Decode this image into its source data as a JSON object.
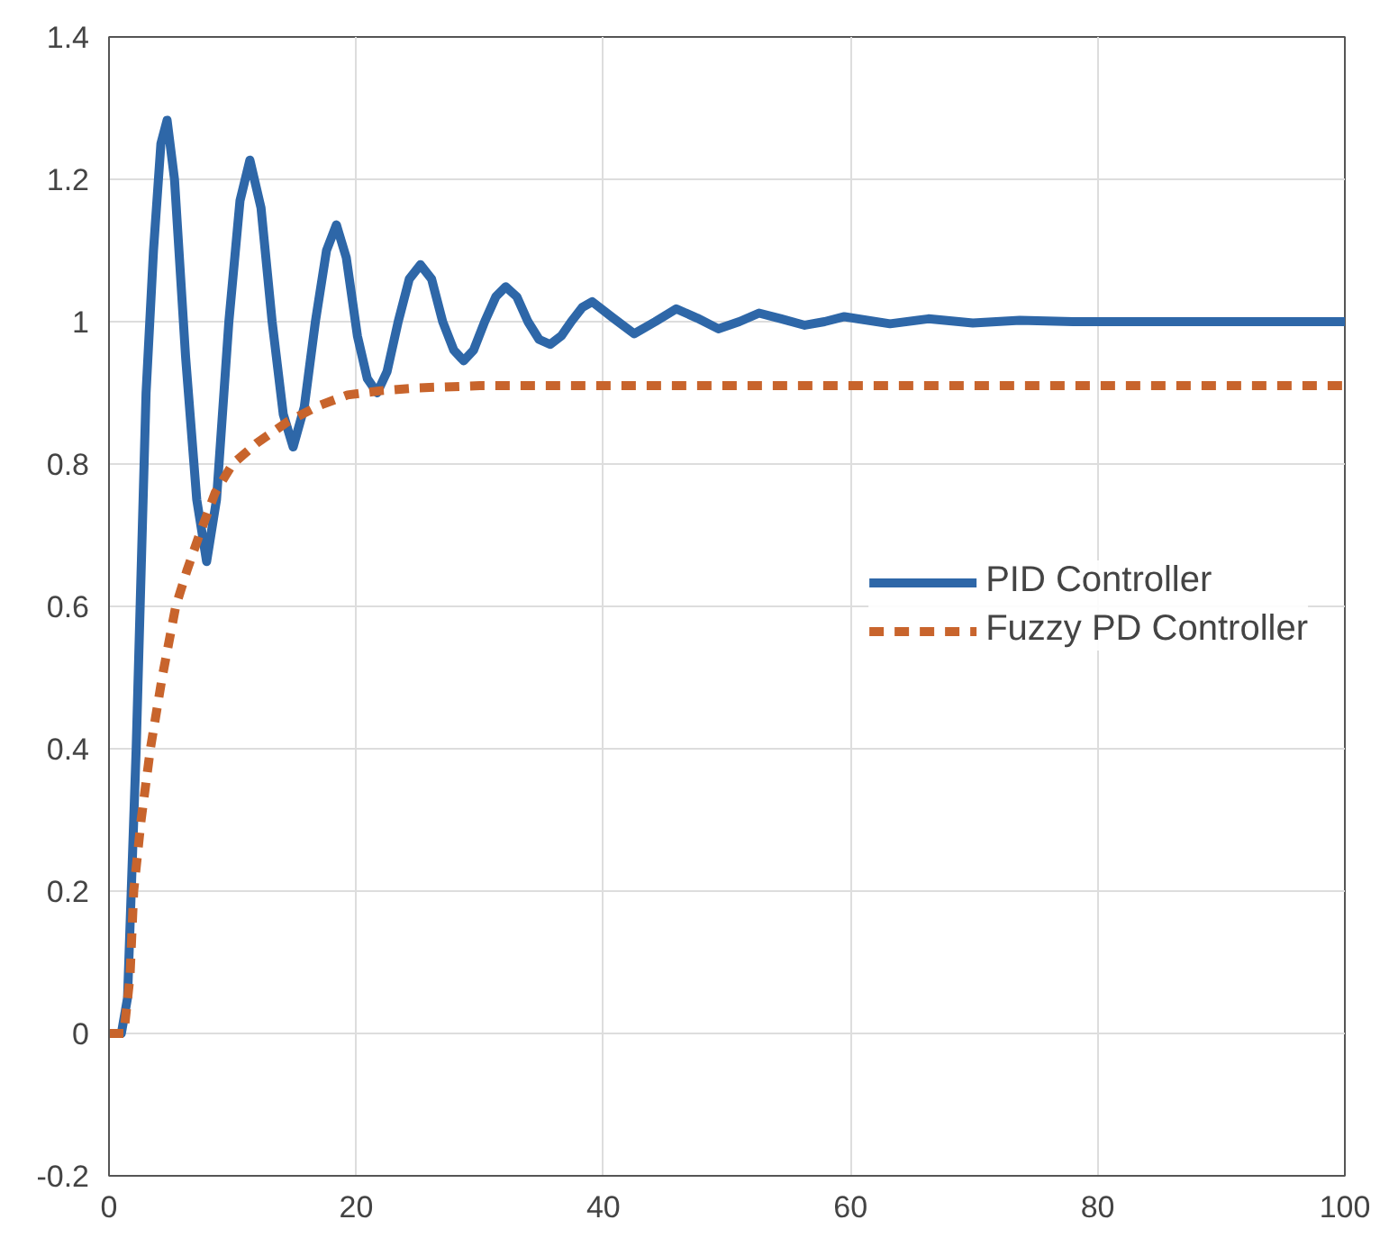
{
  "chart_data": {
    "type": "line",
    "xlim": [
      0,
      100
    ],
    "ylim": [
      -0.2,
      1.4
    ],
    "xticks": [
      0,
      20,
      40,
      60,
      80,
      100
    ],
    "yticks": [
      -0.2,
      0,
      0.2,
      0.4,
      0.6,
      0.8,
      1,
      1.2,
      1.4
    ],
    "grid": true,
    "legend": "right",
    "marker": "none",
    "series": [
      {
        "name": "PID Controller",
        "color": "#2e67a8",
        "line_style": "solid",
        "x": [
          0,
          1,
          1.5,
          2.2,
          3,
          3.6,
          4.2,
          4.7,
          5.3,
          6.2,
          7.1,
          7.9,
          8.7,
          9.7,
          10.6,
          11.4,
          12.3,
          13.2,
          14.1,
          14.9,
          15.8,
          16.7,
          17.6,
          18.4,
          19.2,
          20.1,
          20.9,
          21.7,
          22.5,
          23.4,
          24.3,
          25.2,
          26.1,
          27,
          27.9,
          28.7,
          29.5,
          30.4,
          31.3,
          32.1,
          33,
          33.9,
          34.8,
          35.7,
          36.6,
          37.4,
          38.3,
          39.1,
          40.8,
          42.5,
          44.2,
          45.9,
          47.6,
          49.3,
          51,
          52.6,
          54.4,
          56.3,
          57.9,
          59.5,
          63.2,
          66.3,
          69.9,
          73.7,
          78,
          85,
          100
        ],
        "values": [
          0,
          0,
          0.05,
          0.4,
          0.9,
          1.1,
          1.25,
          1.283,
          1.2,
          0.95,
          0.75,
          0.663,
          0.75,
          1.0,
          1.17,
          1.227,
          1.16,
          1.0,
          0.87,
          0.824,
          0.88,
          1.0,
          1.1,
          1.136,
          1.09,
          0.98,
          0.92,
          0.9,
          0.93,
          1.0,
          1.06,
          1.08,
          1.06,
          1.0,
          0.96,
          0.945,
          0.96,
          1.0,
          1.035,
          1.049,
          1.035,
          1.0,
          0.975,
          0.968,
          0.98,
          1.0,
          1.02,
          1.028,
          1.005,
          0.983,
          1.0,
          1.018,
          1.005,
          0.99,
          1.0,
          1.012,
          1.004,
          0.995,
          1.0,
          1.007,
          0.997,
          1.004,
          0.998,
          1.002,
          1.0,
          1.0,
          1.0
        ]
      },
      {
        "name": "Fuzzy PD Controller",
        "color": "#c8642c",
        "line_style": "dashed",
        "x": [
          0,
          1.2,
          1.7,
          2,
          2.6,
          3.35,
          4.3,
          5.4,
          6.3,
          7.3,
          8.6,
          10,
          12,
          14.5,
          17,
          19.3,
          22,
          25,
          30,
          40,
          60,
          80,
          100
        ],
        "values": [
          0,
          0,
          0.08,
          0.2,
          0.3,
          0.4,
          0.5,
          0.6,
          0.65,
          0.7,
          0.76,
          0.8,
          0.83,
          0.86,
          0.882,
          0.897,
          0.903,
          0.907,
          0.91,
          0.91,
          0.91,
          0.91,
          0.91
        ]
      }
    ]
  }
}
